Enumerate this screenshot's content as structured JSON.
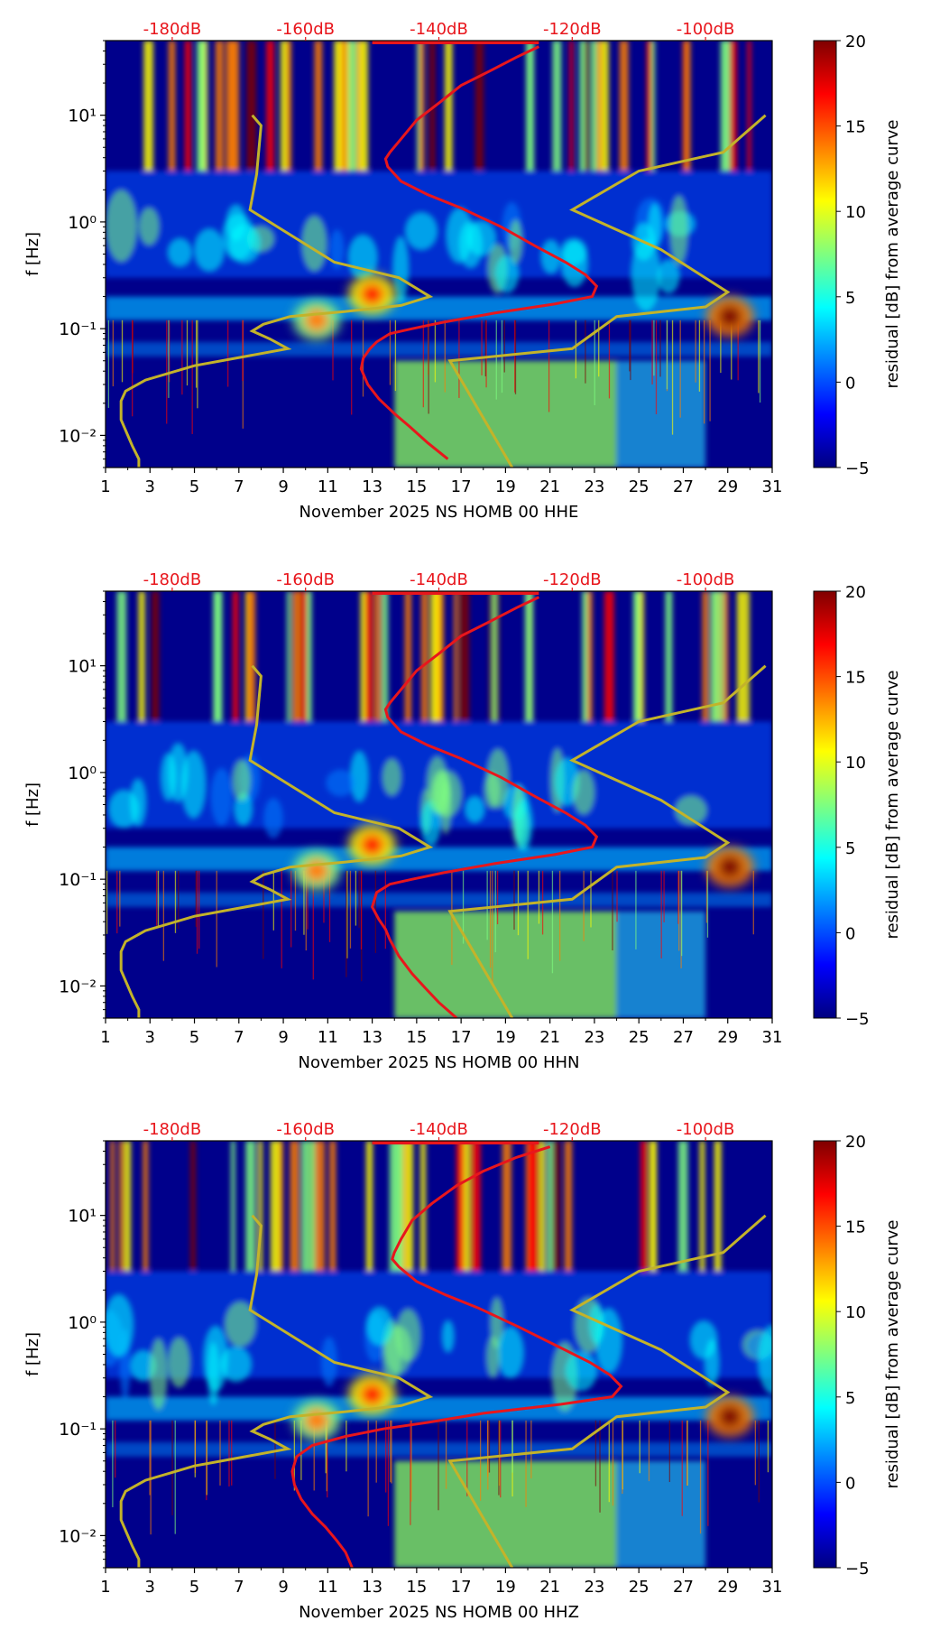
{
  "colorbar": {
    "label": "residual [dB] from average curve",
    "ticks": [
      "20",
      "15",
      "10",
      "5",
      "0",
      "−5"
    ],
    "colors": [
      "#00007f",
      "#0000ff",
      "#007fff",
      "#00ffff",
      "#7fff7f",
      "#ffff00",
      "#ff7f00",
      "#ff0000",
      "#7f0000"
    ]
  },
  "colors": {
    "red_curve": "#e8161c",
    "olive_curve": "#c3b32a",
    "top_labels": "#e8161c",
    "background_low": "#00008b"
  },
  "chart_data": [
    {
      "type": "heatmap",
      "title": "",
      "xlabel": "November 2025 NS HOMB 00 HHE",
      "ylabel": "f [Hz]",
      "x_ticks": [
        "1",
        "3",
        "5",
        "7",
        "9",
        "11",
        "13",
        "15",
        "17",
        "19",
        "21",
        "23",
        "25",
        "27",
        "29",
        "31"
      ],
      "y_ticks": [
        "10¹",
        "10⁰",
        "10⁻¹",
        "10⁻²"
      ],
      "top_ticks": [
        "-180dB",
        "-160dB",
        "-140dB",
        "-120dB",
        "-100dB"
      ],
      "xlim": [
        1,
        31
      ],
      "ylim": [
        0.005,
        50
      ],
      "yscale": "log",
      "colorbar_range": [
        -5,
        20
      ],
      "series": [
        {
          "color": "red",
          "x": [
            20.5,
            19.5,
            18.3,
            17.0,
            16.0,
            15.0,
            14.3,
            13.8,
            13.6,
            13.7,
            14.3,
            15.5,
            17.0,
            18.8,
            20.3,
            21.7,
            22.6,
            23.1,
            22.9,
            21.2,
            18.5,
            16.2,
            14.8,
            13.8,
            13.2,
            12.9,
            12.6,
            12.5,
            12.8,
            13.3,
            14.0,
            14.7,
            15.5,
            16.4
          ],
          "y": [
            44,
            35,
            26,
            19,
            13,
            9,
            6,
            4.5,
            3.9,
            3.3,
            2.4,
            1.8,
            1.35,
            0.9,
            0.6,
            0.42,
            0.32,
            0.25,
            0.2,
            0.17,
            0.14,
            0.115,
            0.1,
            0.09,
            0.075,
            0.065,
            0.053,
            0.042,
            0.03,
            0.022,
            0.016,
            0.012,
            0.0085,
            0.006
          ]
        },
        {
          "color": "olive",
          "x": [
            2.5,
            2.5,
            2.2,
            1.7,
            1.7,
            1.9,
            2.8,
            5.0,
            9.2,
            8.4,
            7.6,
            8.1,
            9.3,
            11.8,
            14.3,
            15.6,
            14.2,
            11.3,
            7.5,
            7.8,
            8.0,
            7.6,
            16.5,
            19.3,
            16.5,
            22.0,
            24.0,
            28.0,
            29.0,
            26.0,
            22.0,
            25.0,
            28.8,
            30.7
          ],
          "y": [
            0.005,
            0.006,
            0.008,
            0.014,
            0.021,
            0.026,
            0.033,
            0.045,
            0.065,
            0.08,
            0.095,
            0.11,
            0.13,
            0.145,
            0.165,
            0.2,
            0.3,
            0.42,
            1.3,
            2.8,
            8.0,
            10.0,
            0.05,
            0.005,
            0.05,
            0.065,
            0.13,
            0.16,
            0.22,
            0.55,
            1.3,
            3.0,
            4.5,
            10.0
          ]
        }
      ],
      "hotspots": [
        {
          "x": 29.1,
          "y": 0.13,
          "level": 20
        },
        {
          "x": 13.0,
          "y": 0.21,
          "level": 17
        },
        {
          "x": 10.5,
          "y": 0.12,
          "level": 15
        }
      ]
    },
    {
      "type": "heatmap",
      "title": "",
      "xlabel": "November 2025 NS HOMB 00 HHN",
      "ylabel": "f [Hz]",
      "x_ticks": [
        "1",
        "3",
        "5",
        "7",
        "9",
        "11",
        "13",
        "15",
        "17",
        "19",
        "21",
        "23",
        "25",
        "27",
        "29",
        "31"
      ],
      "y_ticks": [
        "10¹",
        "10⁰",
        "10⁻¹",
        "10⁻²"
      ],
      "top_ticks": [
        "-180dB",
        "-160dB",
        "-140dB",
        "-120dB",
        "-100dB"
      ],
      "xlim": [
        1,
        31
      ],
      "ylim": [
        0.005,
        50
      ],
      "yscale": "log",
      "colorbar_range": [
        -5,
        20
      ],
      "series": [
        {
          "color": "red",
          "x": [
            20.5,
            19.5,
            18.3,
            17.0,
            16.0,
            15.0,
            14.3,
            13.8,
            13.6,
            13.7,
            14.3,
            15.5,
            17.0,
            18.8,
            20.3,
            21.7,
            22.6,
            23.1,
            22.9,
            21.2,
            18.5,
            16.2,
            14.8,
            13.8,
            13.2,
            13.0,
            13.3,
            13.6,
            13.8,
            14.2,
            14.8,
            15.4,
            16.0,
            16.8
          ],
          "y": [
            44,
            35,
            26,
            19,
            13,
            9,
            6,
            4.5,
            3.9,
            3.3,
            2.4,
            1.8,
            1.35,
            0.9,
            0.6,
            0.42,
            0.32,
            0.25,
            0.2,
            0.17,
            0.14,
            0.115,
            0.1,
            0.09,
            0.075,
            0.055,
            0.042,
            0.034,
            0.027,
            0.019,
            0.013,
            0.0095,
            0.007,
            0.005
          ]
        },
        {
          "color": "olive",
          "x": [
            2.5,
            2.5,
            2.2,
            1.7,
            1.7,
            1.9,
            2.8,
            5.0,
            9.2,
            8.4,
            7.6,
            8.1,
            9.3,
            11.8,
            14.3,
            15.6,
            14.2,
            11.3,
            7.5,
            7.8,
            8.0,
            7.6,
            16.5,
            19.3,
            16.5,
            22.0,
            24.0,
            28.0,
            29.0,
            26.0,
            22.0,
            25.0,
            28.8,
            30.7
          ],
          "y": [
            0.005,
            0.006,
            0.008,
            0.014,
            0.021,
            0.026,
            0.033,
            0.045,
            0.065,
            0.08,
            0.095,
            0.11,
            0.13,
            0.145,
            0.165,
            0.2,
            0.3,
            0.42,
            1.3,
            2.8,
            8.0,
            10.0,
            0.05,
            0.005,
            0.05,
            0.065,
            0.13,
            0.16,
            0.22,
            0.55,
            1.3,
            3.0,
            4.5,
            10.0
          ]
        }
      ],
      "hotspots": [
        {
          "x": 29.1,
          "y": 0.13,
          "level": 20
        },
        {
          "x": 13.0,
          "y": 0.21,
          "level": 17
        },
        {
          "x": 10.5,
          "y": 0.12,
          "level": 15
        }
      ]
    },
    {
      "type": "heatmap",
      "title": "",
      "xlabel": "November 2025 NS HOMB 00 HHZ",
      "ylabel": "f [Hz]",
      "x_ticks": [
        "1",
        "3",
        "5",
        "7",
        "9",
        "11",
        "13",
        "15",
        "17",
        "19",
        "21",
        "23",
        "25",
        "27",
        "29",
        "31"
      ],
      "y_ticks": [
        "10¹",
        "10⁰",
        "10⁻¹",
        "10⁻²"
      ],
      "top_ticks": [
        "-180dB",
        "-160dB",
        "-140dB",
        "-120dB",
        "-100dB"
      ],
      "xlim": [
        1,
        31
      ],
      "ylim": [
        0.005,
        50
      ],
      "yscale": "log",
      "colorbar_range": [
        -5,
        20
      ],
      "series": [
        {
          "color": "red",
          "x": [
            21.0,
            19.5,
            18.0,
            16.8,
            15.7,
            14.8,
            14.3,
            14.0,
            13.9,
            14.2,
            15.0,
            16.3,
            17.8,
            19.6,
            21.3,
            22.8,
            23.7,
            24.2,
            23.8,
            21.5,
            18.0,
            15.5,
            13.5,
            11.8,
            10.3,
            9.6,
            9.4,
            9.5,
            9.8,
            10.3,
            10.9,
            11.4,
            11.8,
            12.1
          ],
          "y": [
            44,
            35,
            26,
            19,
            13,
            9,
            6,
            4.5,
            3.9,
            3.3,
            2.4,
            1.8,
            1.35,
            0.9,
            0.6,
            0.42,
            0.32,
            0.25,
            0.2,
            0.17,
            0.14,
            0.115,
            0.1,
            0.085,
            0.07,
            0.055,
            0.04,
            0.03,
            0.022,
            0.016,
            0.012,
            0.009,
            0.007,
            0.005
          ]
        },
        {
          "color": "olive",
          "x": [
            2.5,
            2.5,
            2.2,
            1.7,
            1.7,
            1.9,
            2.8,
            5.0,
            9.2,
            8.4,
            7.6,
            8.1,
            9.3,
            11.8,
            14.3,
            15.6,
            14.2,
            11.3,
            7.5,
            7.8,
            8.0,
            7.6,
            16.5,
            19.3,
            16.5,
            22.0,
            24.0,
            28.0,
            29.0,
            26.0,
            22.0,
            25.0,
            28.8,
            30.7
          ],
          "y": [
            0.005,
            0.006,
            0.008,
            0.014,
            0.021,
            0.026,
            0.033,
            0.045,
            0.065,
            0.08,
            0.095,
            0.11,
            0.13,
            0.145,
            0.165,
            0.2,
            0.3,
            0.42,
            1.3,
            2.8,
            8.0,
            10.0,
            0.05,
            0.005,
            0.05,
            0.065,
            0.13,
            0.16,
            0.22,
            0.55,
            1.3,
            3.0,
            4.5,
            10.0
          ]
        }
      ],
      "hotspots": [
        {
          "x": 29.1,
          "y": 0.13,
          "level": 20
        },
        {
          "x": 13.0,
          "y": 0.21,
          "level": 17
        },
        {
          "x": 10.5,
          "y": 0.12,
          "level": 15
        }
      ]
    }
  ]
}
